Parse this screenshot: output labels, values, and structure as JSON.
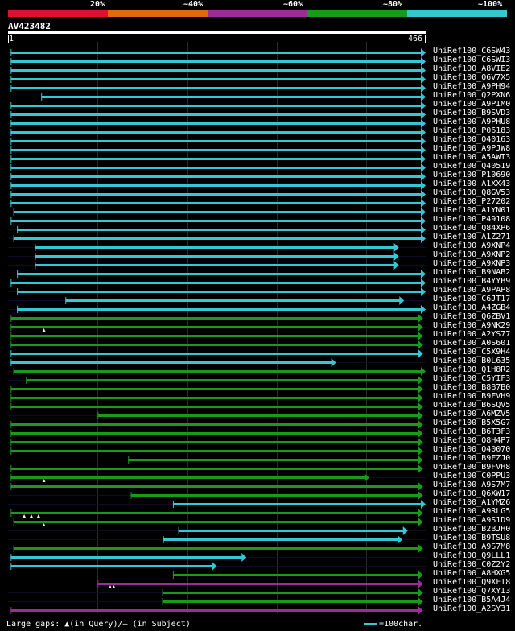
{
  "legend": {
    "labels": [
      "20%",
      "~40%",
      "~60%",
      "~80%",
      "~100%"
    ],
    "colors": [
      "#e01030",
      "#e06a10",
      "#9a2c9c",
      "#1a9a1a",
      "#33c9d4"
    ]
  },
  "query": {
    "name": "AV423482",
    "start": "1",
    "end": "466",
    "length": 466
  },
  "footer": {
    "gaps_text": "Large gaps: ▲(in Query)/– (in Subject)",
    "scale_text": "=100char."
  },
  "hits": [
    {
      "name": "UniRef100_C6SW43",
      "start": 3,
      "end": 466,
      "color": "cyan",
      "qgaps": []
    },
    {
      "name": "UniRef100_C6SWI3",
      "start": 3,
      "end": 466,
      "color": "cyan",
      "qgaps": []
    },
    {
      "name": "UniRef100_A8VIE2",
      "start": 3,
      "end": 466,
      "color": "cyan",
      "qgaps": []
    },
    {
      "name": "UniRef100_Q6V7X5",
      "start": 3,
      "end": 466,
      "color": "cyan",
      "qgaps": []
    },
    {
      "name": "UniRef100_A9PH94",
      "start": 3,
      "end": 466,
      "color": "cyan",
      "qgaps": []
    },
    {
      "name": "UniRef100_Q2PXN6",
      "start": 37,
      "end": 466,
      "color": "cyan",
      "qgaps": []
    },
    {
      "name": "UniRef100_A9PIM0",
      "start": 3,
      "end": 466,
      "color": "cyan",
      "qgaps": []
    },
    {
      "name": "UniRef100_B9SVD3",
      "start": 3,
      "end": 466,
      "color": "cyan",
      "qgaps": []
    },
    {
      "name": "UniRef100_A9PHU8",
      "start": 3,
      "end": 466,
      "color": "cyan",
      "qgaps": []
    },
    {
      "name": "UniRef100_P06183",
      "start": 3,
      "end": 466,
      "color": "cyan",
      "qgaps": []
    },
    {
      "name": "UniRef100_Q40163",
      "start": 3,
      "end": 466,
      "color": "cyan",
      "qgaps": []
    },
    {
      "name": "UniRef100_A9PJW8",
      "start": 3,
      "end": 466,
      "color": "cyan",
      "qgaps": []
    },
    {
      "name": "UniRef100_A5AWT3",
      "start": 3,
      "end": 466,
      "color": "cyan",
      "qgaps": []
    },
    {
      "name": "UniRef100_Q40519",
      "start": 3,
      "end": 466,
      "color": "cyan",
      "qgaps": []
    },
    {
      "name": "UniRef100_P10690",
      "start": 3,
      "end": 466,
      "color": "cyan",
      "qgaps": []
    },
    {
      "name": "UniRef100_A1XX43",
      "start": 3,
      "end": 466,
      "color": "cyan",
      "qgaps": []
    },
    {
      "name": "UniRef100_Q8GV53",
      "start": 3,
      "end": 466,
      "color": "cyan",
      "qgaps": []
    },
    {
      "name": "UniRef100_P27202",
      "start": 3,
      "end": 466,
      "color": "cyan",
      "qgaps": []
    },
    {
      "name": "UniRef100_A1YN01",
      "start": 6,
      "end": 466,
      "color": "cyan",
      "qgaps": []
    },
    {
      "name": "UniRef100_P49108",
      "start": 3,
      "end": 466,
      "color": "cyan",
      "qgaps": []
    },
    {
      "name": "UniRef100_Q84XP6",
      "start": 10,
      "end": 466,
      "color": "cyan",
      "qgaps": []
    },
    {
      "name": "UniRef100_A1Z271",
      "start": 6,
      "end": 466,
      "color": "cyan",
      "qgaps": []
    },
    {
      "name": "UniRef100_A9XNP4",
      "start": 30,
      "end": 436,
      "color": "cyan",
      "qgaps": []
    },
    {
      "name": "UniRef100_A9XNP2",
      "start": 30,
      "end": 436,
      "color": "cyan",
      "qgaps": []
    },
    {
      "name": "UniRef100_A9XNP3",
      "start": 30,
      "end": 436,
      "color": "cyan",
      "qgaps": []
    },
    {
      "name": "UniRef100_B9NAB2",
      "start": 10,
      "end": 466,
      "color": "cyan",
      "qgaps": []
    },
    {
      "name": "UniRef100_B4YYB9",
      "start": 3,
      "end": 466,
      "color": "cyan",
      "qgaps": []
    },
    {
      "name": "UniRef100_A9PAP8",
      "start": 10,
      "end": 466,
      "color": "cyan",
      "qgaps": []
    },
    {
      "name": "UniRef100_C6JT17",
      "start": 64,
      "end": 442,
      "color": "cyan",
      "qgaps": []
    },
    {
      "name": "UniRef100_A4ZGB4",
      "start": 10,
      "end": 466,
      "color": "cyan",
      "qgaps": []
    },
    {
      "name": "UniRef100_Q6ZBV1",
      "start": 3,
      "end": 463,
      "color": "green",
      "qgaps": []
    },
    {
      "name": "UniRef100_A9NK29",
      "start": 3,
      "end": 463,
      "color": "green",
      "qgaps": [
        40
      ]
    },
    {
      "name": "UniRef100_A2YS77",
      "start": 3,
      "end": 463,
      "color": "green",
      "qgaps": []
    },
    {
      "name": "UniRef100_A0S601",
      "start": 3,
      "end": 463,
      "color": "green",
      "qgaps": []
    },
    {
      "name": "UniRef100_C5X9H4",
      "start": 3,
      "end": 463,
      "color": "cyan",
      "qgaps": []
    },
    {
      "name": "UniRef100_B0L635",
      "start": 3,
      "end": 366,
      "color": "cyan",
      "qgaps": []
    },
    {
      "name": "UniRef100_Q1H8R2",
      "start": 6,
      "end": 466,
      "color": "green",
      "qgaps": []
    },
    {
      "name": "UniRef100_C5YIF3",
      "start": 20,
      "end": 463,
      "color": "green",
      "qgaps": []
    },
    {
      "name": "UniRef100_B8B7B0",
      "start": 3,
      "end": 463,
      "color": "green",
      "qgaps": []
    },
    {
      "name": "UniRef100_B9FVH9",
      "start": 3,
      "end": 463,
      "color": "green",
      "qgaps": []
    },
    {
      "name": "UniRef100_B6SQV5",
      "start": 3,
      "end": 463,
      "color": "green",
      "qgaps": []
    },
    {
      "name": "UniRef100_A6MZV5",
      "start": 100,
      "end": 463,
      "color": "green",
      "qgaps": []
    },
    {
      "name": "UniRef100_B5X5G7",
      "start": 3,
      "end": 463,
      "color": "green",
      "qgaps": []
    },
    {
      "name": "UniRef100_B6T3F3",
      "start": 3,
      "end": 463,
      "color": "green",
      "qgaps": []
    },
    {
      "name": "UniRef100_Q8H4P7",
      "start": 3,
      "end": 463,
      "color": "green",
      "qgaps": []
    },
    {
      "name": "UniRef100_Q40070",
      "start": 3,
      "end": 463,
      "color": "green",
      "qgaps": []
    },
    {
      "name": "UniRef100_B9FZJ0",
      "start": 134,
      "end": 463,
      "color": "green",
      "qgaps": []
    },
    {
      "name": "UniRef100_B9FVH8",
      "start": 3,
      "end": 463,
      "color": "green",
      "qgaps": []
    },
    {
      "name": "UniRef100_C0PPU3",
      "start": 3,
      "end": 403,
      "color": "green",
      "qgaps": [
        40
      ]
    },
    {
      "name": "UniRef100_A9S7M7",
      "start": 3,
      "end": 463,
      "color": "green",
      "qgaps": []
    },
    {
      "name": "UniRef100_Q6XW17",
      "start": 137,
      "end": 463,
      "color": "green",
      "qgaps": []
    },
    {
      "name": "UniRef100_A1YMZ6",
      "start": 184,
      "end": 466,
      "color": "cyan",
      "qgaps": []
    },
    {
      "name": "UniRef100_A9RLG5",
      "start": 3,
      "end": 463,
      "color": "green",
      "qgaps": [
        18,
        26,
        34
      ]
    },
    {
      "name": "UniRef100_A9S1D9",
      "start": 6,
      "end": 463,
      "color": "green",
      "qgaps": [
        40
      ]
    },
    {
      "name": "UniRef100_B2BJH0",
      "start": 190,
      "end": 446,
      "color": "cyan",
      "qgaps": []
    },
    {
      "name": "UniRef100_B9TSU8",
      "start": 173,
      "end": 440,
      "color": "cyan",
      "qgaps": []
    },
    {
      "name": "UniRef100_A9S7M8",
      "start": 6,
      "end": 463,
      "color": "green",
      "qgaps": []
    },
    {
      "name": "UniRef100_Q9LLL1",
      "start": 3,
      "end": 266,
      "color": "cyan",
      "qgaps": []
    },
    {
      "name": "UniRef100_C0Z2Y2",
      "start": 3,
      "end": 233,
      "color": "cyan",
      "qgaps": []
    },
    {
      "name": "UniRef100_A8HXG5",
      "start": 184,
      "end": 463,
      "color": "green",
      "qgaps": []
    },
    {
      "name": "UniRef100_Q9XFT8",
      "start": 100,
      "end": 463,
      "color": "purple",
      "qgaps": [
        114,
        118
      ]
    },
    {
      "name": "UniRef100_Q7XYI3",
      "start": 172,
      "end": 463,
      "color": "green",
      "qgaps": []
    },
    {
      "name": "UniRef100_B5A4J4",
      "start": 172,
      "end": 463,
      "color": "green",
      "qgaps": []
    },
    {
      "name": "UniRef100_A2SY31",
      "start": 3,
      "end": 463,
      "color": "purple",
      "qgaps": []
    }
  ],
  "colors": {
    "cyan": "#33c9d4",
    "green": "#1a9a1a",
    "purple": "#9a2c9c",
    "gap": "#f5f5a0"
  }
}
